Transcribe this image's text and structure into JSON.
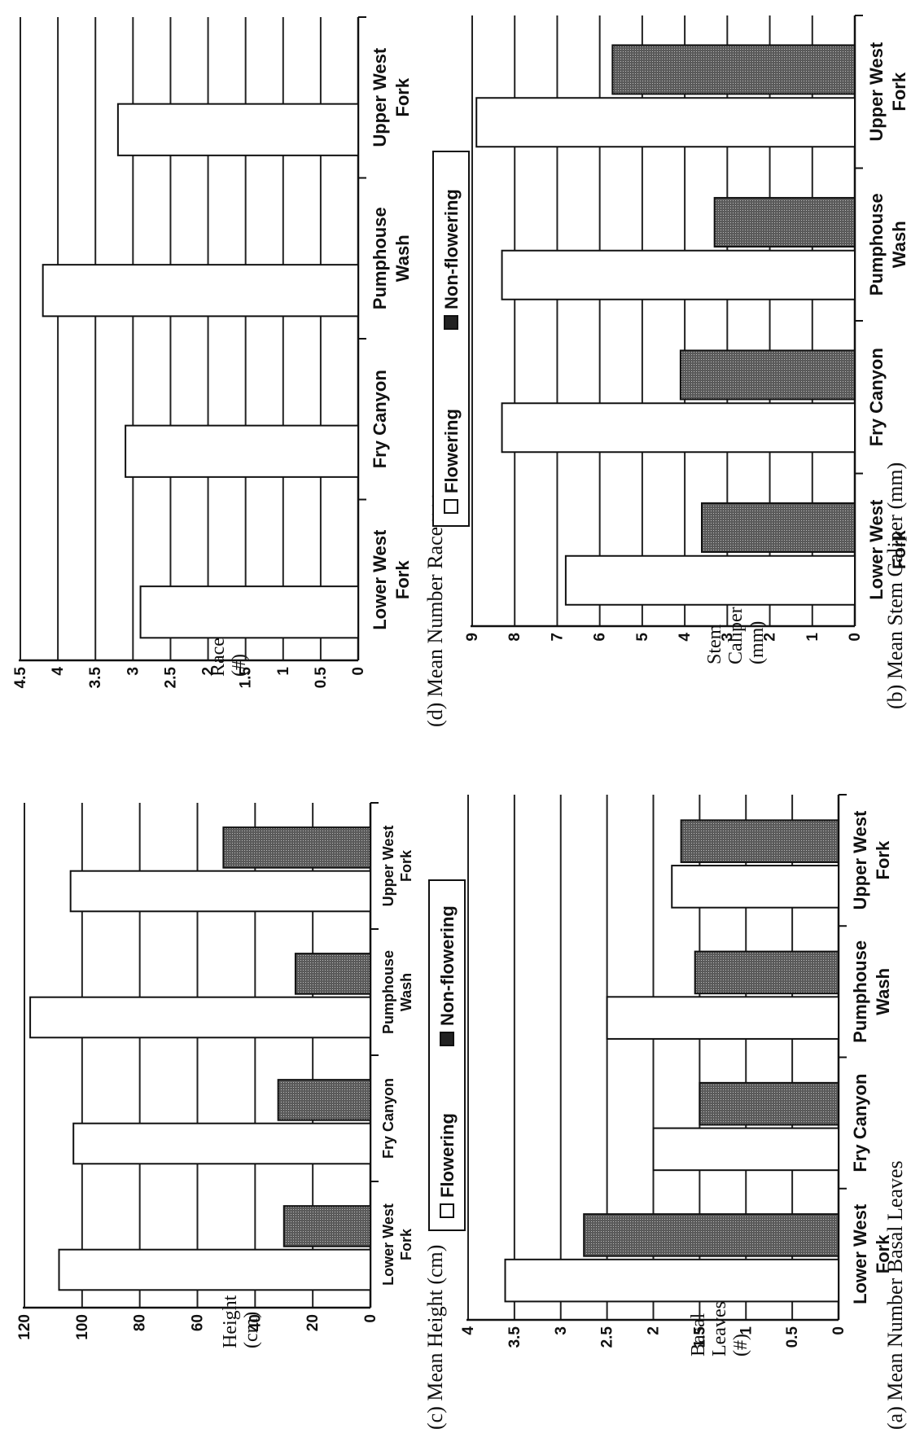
{
  "chart_data": [
    {
      "type": "bar",
      "title": "(a) Mean Number Basal Leaves",
      "ylabel": [
        "Basal",
        "Leaves",
        "(#)"
      ],
      "categories": [
        [
          "Lower West",
          "Fork"
        ],
        [
          "Fry Canyon"
        ],
        [
          "Pumphouse",
          "Wash"
        ],
        [
          "Upper West",
          "Fork"
        ]
      ],
      "series": [
        {
          "name": "Flowering",
          "values": [
            3.6,
            2.0,
            2.5,
            1.8
          ]
        },
        {
          "name": "Non-flowering",
          "values": [
            2.75,
            1.5,
            1.55,
            1.7
          ]
        }
      ],
      "ylim": [
        0,
        4
      ],
      "yticks": [
        "0",
        "0.5",
        "1",
        "1.5",
        "2",
        "2.5",
        "3",
        "3.5",
        "4"
      ],
      "grid": true,
      "legend": "bottom"
    },
    {
      "type": "bar",
      "title": "(b) Mean Stem Caliper (mm)",
      "ylabel": [
        "Stem",
        "Caliper",
        "(mm)"
      ],
      "categories": [
        [
          "Lower West",
          "Fork"
        ],
        [
          "Fry Canyon"
        ],
        [
          "Pumphouse",
          "Wash"
        ],
        [
          "Upper West",
          "Fork"
        ]
      ],
      "series": [
        {
          "name": "Flowering",
          "values": [
            6.8,
            8.3,
            8.3,
            8.9
          ]
        },
        {
          "name": "Non-flowering",
          "values": [
            3.6,
            4.1,
            3.3,
            5.7
          ]
        }
      ],
      "ylim": [
        0,
        9
      ],
      "yticks": [
        "0",
        "1",
        "2",
        "3",
        "4",
        "5",
        "6",
        "7",
        "8",
        "9"
      ],
      "grid": true,
      "legend": "bottom"
    },
    {
      "type": "bar",
      "title": "(c) Mean Height (cm)",
      "ylabel": [
        "Height",
        "(cm)"
      ],
      "categories": [
        [
          "Lower West",
          "Fork"
        ],
        [
          "Fry Canyon"
        ],
        [
          "Pumphouse",
          "Wash"
        ],
        [
          "Upper West",
          "Fork"
        ]
      ],
      "series": [
        {
          "name": "Flowering",
          "values": [
            108,
            103,
            118,
            104
          ]
        },
        {
          "name": "Non-flowering",
          "values": [
            30,
            32,
            26,
            51
          ]
        }
      ],
      "ylim": [
        0,
        120
      ],
      "yticks": [
        "0",
        "20",
        "40",
        "60",
        "80",
        "100",
        "120"
      ],
      "grid": true,
      "legend": "bottom"
    },
    {
      "type": "bar",
      "title": "(d) Mean Number Racemes",
      "ylabel": [
        "Racemes",
        "(#)"
      ],
      "categories": [
        [
          "Lower West",
          "Fork"
        ],
        [
          "Fry Canyon"
        ],
        [
          "Pumphouse",
          "Wash"
        ],
        [
          "Upper West",
          "Fork"
        ]
      ],
      "series": [
        {
          "name": "Flowering",
          "values": [
            2.9,
            3.1,
            4.2,
            3.2
          ]
        },
        {
          "name": "Non-flowering",
          "values": [
            0,
            0,
            0,
            0
          ]
        }
      ],
      "ylim": [
        0,
        4.5
      ],
      "yticks": [
        "0",
        "0.5",
        "1",
        "1.5",
        "2",
        "2.5",
        "3",
        "3.5",
        "4",
        "4.5"
      ],
      "grid": true,
      "legend": "bottom"
    }
  ],
  "colors": {
    "flowering": "#ffffff",
    "non_flowering": "#5f5f5f",
    "grid": "#222222"
  }
}
